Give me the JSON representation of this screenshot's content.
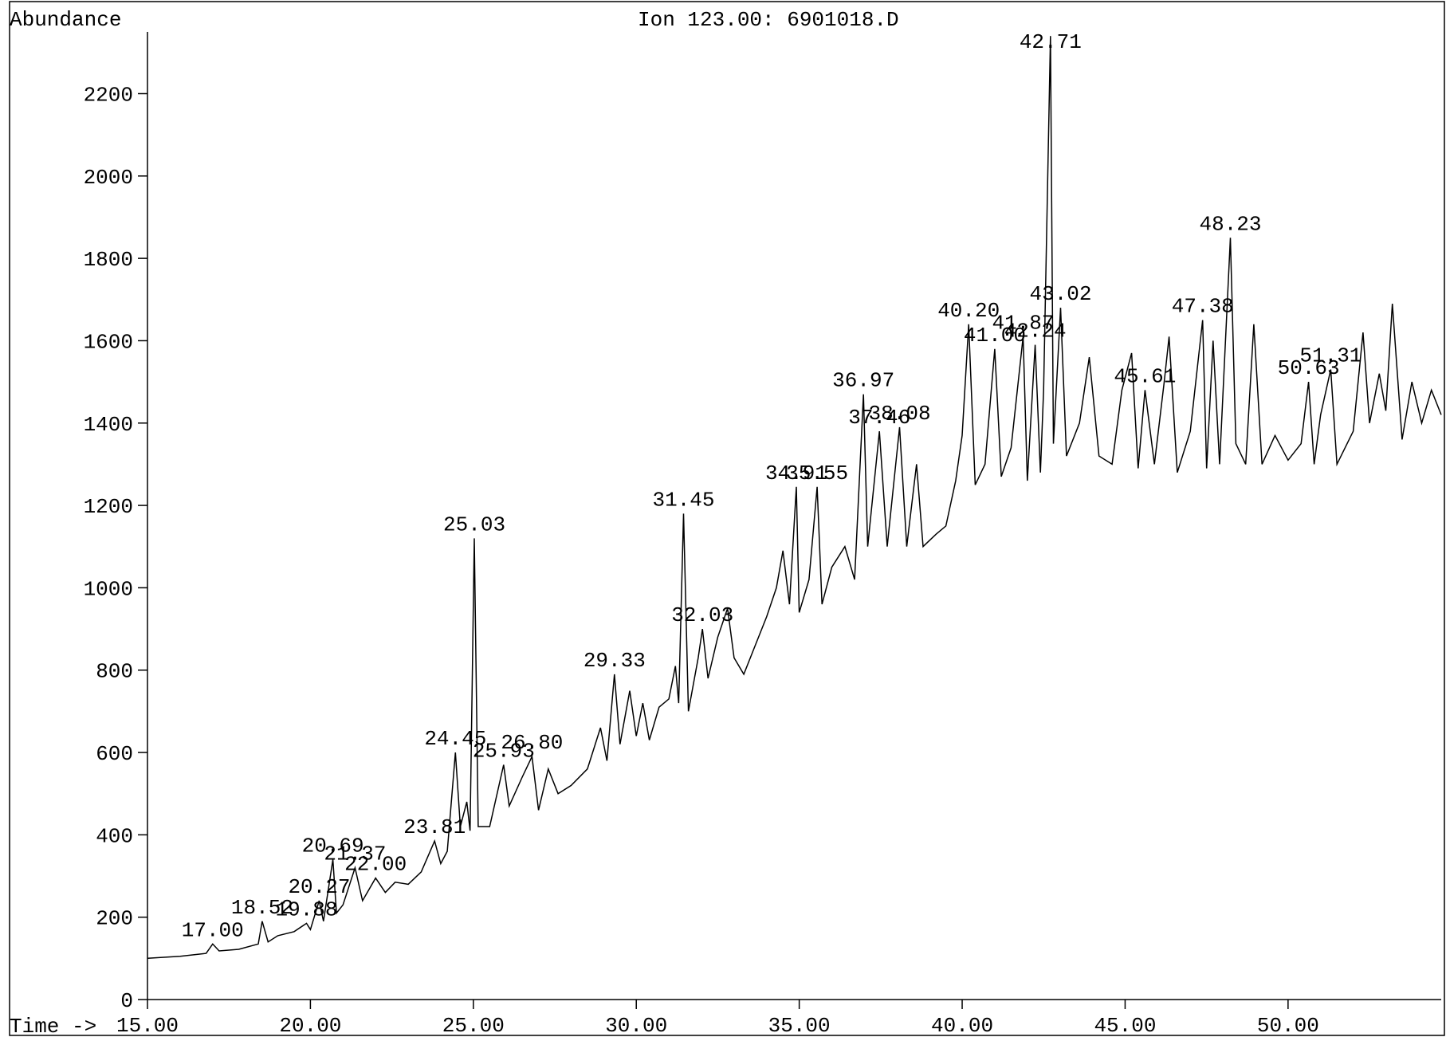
{
  "chart_data": {
    "type": "line",
    "title": "Ion 123.00: 6901018.D",
    "y_label": "Abundance",
    "x_label": "Time ->",
    "color": "#000000",
    "x": [
      15.0,
      16.0,
      16.8,
      17.0,
      17.2,
      17.8,
      18.4,
      18.52,
      18.7,
      19.0,
      19.5,
      19.88,
      20.0,
      20.27,
      20.4,
      20.69,
      20.8,
      21.0,
      21.37,
      21.6,
      22.0,
      22.3,
      22.6,
      23.0,
      23.4,
      23.81,
      24.0,
      24.2,
      24.45,
      24.6,
      24.8,
      24.9,
      25.03,
      25.15,
      25.5,
      25.93,
      26.1,
      26.5,
      26.8,
      27.0,
      27.3,
      27.6,
      28.0,
      28.5,
      28.9,
      29.1,
      29.33,
      29.5,
      29.8,
      30.0,
      30.2,
      30.4,
      30.7,
      31.0,
      31.2,
      31.3,
      31.45,
      31.6,
      31.9,
      32.03,
      32.2,
      32.5,
      32.8,
      33.0,
      33.3,
      33.6,
      34.0,
      34.3,
      34.5,
      34.7,
      34.91,
      35.0,
      35.3,
      35.55,
      35.7,
      36.0,
      36.4,
      36.7,
      36.97,
      37.1,
      37.46,
      37.7,
      38.08,
      38.3,
      38.6,
      38.8,
      39.2,
      39.5,
      39.8,
      40.0,
      40.2,
      40.4,
      40.7,
      41.0,
      41.2,
      41.5,
      41.87,
      42.0,
      42.24,
      42.4,
      42.5,
      42.71,
      42.8,
      43.02,
      43.2,
      43.6,
      43.9,
      44.2,
      44.6,
      44.9,
      45.2,
      45.4,
      45.61,
      45.9,
      46.2,
      46.35,
      46.6,
      47.0,
      47.38,
      47.5,
      47.7,
      47.9,
      48.23,
      48.4,
      48.7,
      48.95,
      49.2,
      49.6,
      50.0,
      50.4,
      50.63,
      50.8,
      51.0,
      51.31,
      51.5,
      52.0,
      52.3,
      52.5,
      52.8,
      53.0,
      53.2,
      53.5,
      53.8,
      54.1,
      54.4,
      54.7
    ],
    "values": [
      100,
      105,
      112,
      135,
      118,
      122,
      135,
      190,
      140,
      155,
      165,
      185,
      170,
      240,
      190,
      340,
      210,
      230,
      320,
      240,
      295,
      260,
      285,
      280,
      310,
      385,
      330,
      360,
      600,
      420,
      480,
      410,
      1120,
      420,
      420,
      570,
      470,
      540,
      590,
      460,
      560,
      500,
      520,
      560,
      660,
      580,
      790,
      620,
      750,
      640,
      720,
      630,
      710,
      730,
      810,
      720,
      1180,
      700,
      830,
      900,
      780,
      880,
      950,
      830,
      790,
      850,
      930,
      1000,
      1090,
      960,
      1245,
      940,
      1020,
      1245,
      960,
      1050,
      1100,
      1020,
      1470,
      1100,
      1380,
      1100,
      1390,
      1100,
      1300,
      1100,
      1130,
      1150,
      1260,
      1370,
      1640,
      1250,
      1300,
      1580,
      1270,
      1340,
      1610,
      1260,
      1590,
      1280,
      1480,
      2340,
      1350,
      1680,
      1320,
      1400,
      1560,
      1320,
      1300,
      1480,
      1570,
      1290,
      1480,
      1300,
      1500,
      1610,
      1280,
      1380,
      1650,
      1290,
      1600,
      1300,
      1850,
      1350,
      1300,
      1640,
      1300,
      1370,
      1310,
      1350,
      1500,
      1300,
      1420,
      1530,
      1300,
      1380,
      1620,
      1400,
      1520,
      1430,
      1690,
      1360,
      1500,
      1400,
      1480,
      1420
    ],
    "xlim": [
      15,
      54.7
    ],
    "ylim": [
      0,
      2350
    ],
    "xticks": [
      {
        "value": 15,
        "label": "15.00"
      },
      {
        "value": 20,
        "label": "20.00"
      },
      {
        "value": 25,
        "label": "25.00"
      },
      {
        "value": 30,
        "label": "30.00"
      },
      {
        "value": 35,
        "label": "35.00"
      },
      {
        "value": 40,
        "label": "40.00"
      },
      {
        "value": 45,
        "label": "45.00"
      },
      {
        "value": 50,
        "label": "50.00"
      }
    ],
    "yticks": [
      0,
      200,
      400,
      600,
      800,
      1000,
      1200,
      1400,
      1600,
      1800,
      2000,
      2200
    ],
    "annotations": [
      {
        "text": "17.00",
        "x": 17.0,
        "y": 135
      },
      {
        "text": "18.52",
        "x": 18.52,
        "y": 190
      },
      {
        "text": "19.88",
        "x": 19.88,
        "y": 185
      },
      {
        "text": "20.27",
        "x": 20.27,
        "y": 240
      },
      {
        "text": "20.69",
        "x": 20.69,
        "y": 340
      },
      {
        "text": "21.37",
        "x": 21.37,
        "y": 320
      },
      {
        "text": "22.00",
        "x": 22.0,
        "y": 295
      },
      {
        "text": "23.81",
        "x": 23.81,
        "y": 385
      },
      {
        "text": "24.45",
        "x": 24.45,
        "y": 600
      },
      {
        "text": "25.03",
        "x": 25.03,
        "y": 1120
      },
      {
        "text": "25.93",
        "x": 25.93,
        "y": 570
      },
      {
        "text": "26.80",
        "x": 26.8,
        "y": 590
      },
      {
        "text": "29.33",
        "x": 29.33,
        "y": 790
      },
      {
        "text": "31.45",
        "x": 31.45,
        "y": 1180
      },
      {
        "text": "32.03",
        "x": 32.03,
        "y": 900
      },
      {
        "text": "34.91",
        "x": 34.91,
        "y": 1245
      },
      {
        "text": "35.55",
        "x": 35.55,
        "y": 1245
      },
      {
        "text": "36.97",
        "x": 36.97,
        "y": 1470
      },
      {
        "text": "37.46",
        "x": 37.46,
        "y": 1380
      },
      {
        "text": "38.08",
        "x": 38.08,
        "y": 1390
      },
      {
        "text": "40.20",
        "x": 40.2,
        "y": 1640
      },
      {
        "text": "41.00",
        "x": 41.0,
        "y": 1580
      },
      {
        "text": "41.87",
        "x": 41.87,
        "y": 1610
      },
      {
        "text": "42.24",
        "x": 42.24,
        "y": 1590
      },
      {
        "text": "42.71",
        "x": 42.71,
        "y": 2340
      },
      {
        "text": "43.02",
        "x": 43.02,
        "y": 1680
      },
      {
        "text": "45.61",
        "x": 45.61,
        "y": 1480
      },
      {
        "text": "47.38",
        "x": 47.38,
        "y": 1650
      },
      {
        "text": "48.23",
        "x": 48.23,
        "y": 1850
      },
      {
        "text": "50.63",
        "x": 50.63,
        "y": 1500
      },
      {
        "text": "51.31",
        "x": 51.31,
        "y": 1530
      }
    ]
  }
}
